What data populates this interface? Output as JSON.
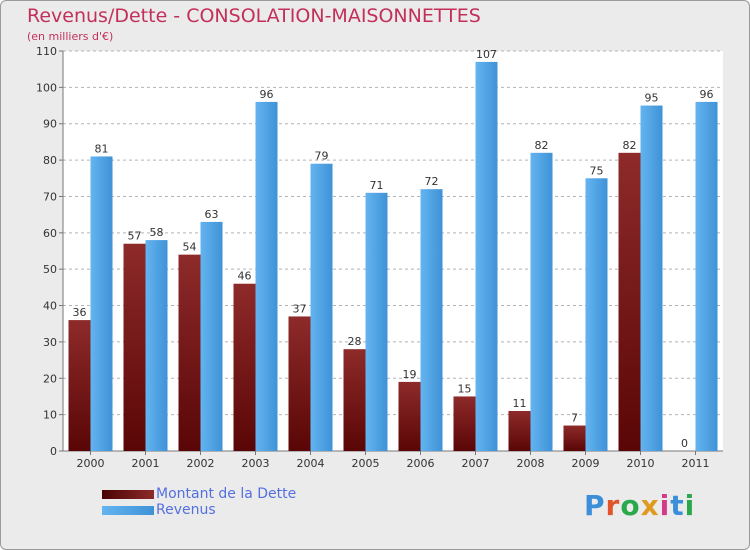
{
  "title": "Revenus/Dette - CONSOLATION-MAISONNETTES",
  "subtitle": "(en milliers d'€)",
  "logo": {
    "text": "Proxiti",
    "letters": [
      "P",
      "r",
      "o",
      "x",
      "i",
      "t",
      "i"
    ]
  },
  "legend": [
    {
      "name": "Montant de la Dette",
      "color": "#7a1616"
    },
    {
      "name": "Revenus",
      "color": "#4ea3e4"
    }
  ],
  "chart_data": {
    "type": "bar",
    "categories": [
      "2000",
      "2001",
      "2002",
      "2003",
      "2004",
      "2005",
      "2006",
      "2007",
      "2008",
      "2009",
      "2010",
      "2011"
    ],
    "series": [
      {
        "name": "Montant de la Dette",
        "color": "#7a1616",
        "values": [
          36,
          57,
          54,
          46,
          37,
          28,
          19,
          15,
          11,
          7,
          82,
          0
        ]
      },
      {
        "name": "Revenus",
        "color": "#4ea3e4",
        "values": [
          81,
          58,
          63,
          96,
          79,
          71,
          72,
          107,
          82,
          75,
          95,
          96
        ]
      }
    ],
    "yticks": [
      0,
      10,
      20,
      30,
      40,
      50,
      60,
      70,
      80,
      90,
      100,
      110
    ],
    "ylim": [
      0,
      110
    ],
    "grid": true,
    "legend_position": "bottom-left"
  }
}
